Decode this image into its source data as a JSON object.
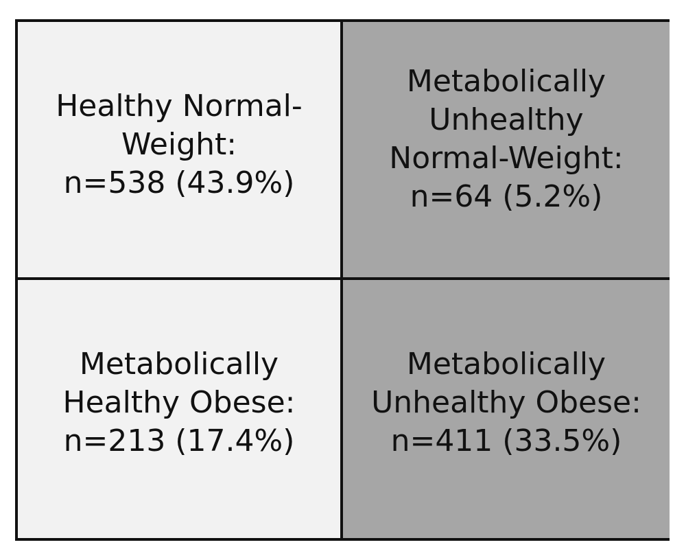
{
  "quadrants": {
    "top_left": {
      "text": "Healthy Normal-\nWeight:\nn=538 (43.9%)",
      "fill": "#f2f2f2"
    },
    "top_right": {
      "text": "Metabolically\nUnhealthy\nNormal-Weight:\nn=64 (5.2%)",
      "fill": "#a6a6a6"
    },
    "bottom_left": {
      "text": "Metabolically\nHealthy Obese:\nn=213 (17.4%)",
      "fill": "#f2f2f2"
    },
    "bottom_right": {
      "text": "Metabolically\nUnhealthy Obese:\nn=411 (33.5%)",
      "fill": "#a6a6a6"
    }
  },
  "border_color": "#111111"
}
